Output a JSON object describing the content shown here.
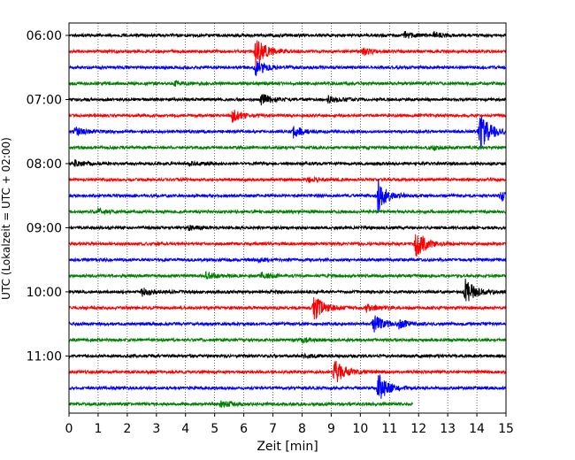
{
  "chart_data": {
    "type": "line",
    "title": "",
    "xlabel": "Zeit  [min]",
    "ylabel": "UTC (Lokalzeit = UTC + 02:00)",
    "xlim": [
      0,
      15
    ],
    "x_ticks": [
      "0",
      "1",
      "2",
      "3",
      "4",
      "5",
      "6",
      "7",
      "8",
      "9",
      "10",
      "11",
      "12",
      "13",
      "14",
      "15"
    ],
    "y_tick_labels": [
      "06:00",
      "07:00",
      "08:00",
      "09:00",
      "10:00",
      "11:00"
    ],
    "grid": "vertical dotted",
    "line_colors": [
      "#000000",
      "#ff0000",
      "#0000ff",
      "#008000"
    ],
    "last_trace_end_min": 11.8,
    "traces": [
      {
        "start": "06:00",
        "events": [
          {
            "t": 11.5,
            "amp": 0.5
          },
          {
            "t": 12.5,
            "amp": 0.45
          }
        ]
      },
      {
        "start": "06:15",
        "events": [
          {
            "t": 6.4,
            "amp": 2.2
          },
          {
            "t": 10.1,
            "amp": 0.5
          }
        ]
      },
      {
        "start": "06:30",
        "events": [
          {
            "t": 6.4,
            "amp": 1.2
          }
        ]
      },
      {
        "start": "06:45",
        "events": [
          {
            "t": 3.6,
            "amp": 0.3
          }
        ]
      },
      {
        "start": "07:00",
        "events": [
          {
            "t": 6.6,
            "amp": 0.8
          },
          {
            "t": 8.9,
            "amp": 0.55
          }
        ]
      },
      {
        "start": "07:15",
        "events": [
          {
            "t": 5.6,
            "amp": 0.8
          }
        ]
      },
      {
        "start": "07:30",
        "events": [
          {
            "t": 0.2,
            "amp": 0.6
          },
          {
            "t": 7.7,
            "amp": 0.8
          },
          {
            "t": 14.1,
            "amp": 2.8
          }
        ]
      },
      {
        "start": "07:45",
        "events": [
          {
            "t": 12.5,
            "amp": 0.3
          }
        ]
      },
      {
        "start": "08:00",
        "events": [
          {
            "t": 0.2,
            "amp": 0.4
          },
          {
            "t": 4.1,
            "amp": 0.3
          }
        ]
      },
      {
        "start": "08:15",
        "events": [
          {
            "t": 8.2,
            "amp": 0.3
          }
        ]
      },
      {
        "start": "08:30",
        "events": [
          {
            "t": 10.6,
            "amp": 2.3
          },
          {
            "t": 14.8,
            "amp": 0.8
          }
        ]
      },
      {
        "start": "08:45",
        "events": [
          {
            "t": 1.0,
            "amp": 0.35
          }
        ]
      },
      {
        "start": "09:00",
        "events": [
          {
            "t": 4.1,
            "amp": 0.3
          }
        ]
      },
      {
        "start": "09:15",
        "events": [
          {
            "t": 11.9,
            "amp": 2.0
          }
        ]
      },
      {
        "start": "09:30",
        "events": [
          {
            "t": 6.5,
            "amp": 0.25
          }
        ]
      },
      {
        "start": "09:45",
        "events": [
          {
            "t": 4.7,
            "amp": 0.5
          },
          {
            "t": 6.6,
            "amp": 0.4
          }
        ]
      },
      {
        "start": "10:00",
        "events": [
          {
            "t": 2.5,
            "amp": 0.6
          },
          {
            "t": 13.6,
            "amp": 1.8
          }
        ]
      },
      {
        "start": "10:15",
        "events": [
          {
            "t": 8.4,
            "amp": 1.9
          },
          {
            "t": 10.2,
            "amp": 0.5
          }
        ]
      },
      {
        "start": "10:30",
        "events": [
          {
            "t": 10.4,
            "amp": 1.5
          },
          {
            "t": 11.3,
            "amp": 0.6
          }
        ]
      },
      {
        "start": "10:45",
        "events": [
          {
            "t": 8.0,
            "amp": 0.3
          }
        ]
      },
      {
        "start": "11:00",
        "events": [
          {
            "t": 8.0,
            "amp": 0.25
          }
        ]
      },
      {
        "start": "11:15",
        "events": [
          {
            "t": 9.1,
            "amp": 1.8
          }
        ]
      },
      {
        "start": "11:30",
        "events": [
          {
            "t": 10.6,
            "amp": 2.0
          }
        ]
      },
      {
        "start": "11:45",
        "events": [
          {
            "t": 5.2,
            "amp": 0.6
          }
        ]
      }
    ]
  }
}
